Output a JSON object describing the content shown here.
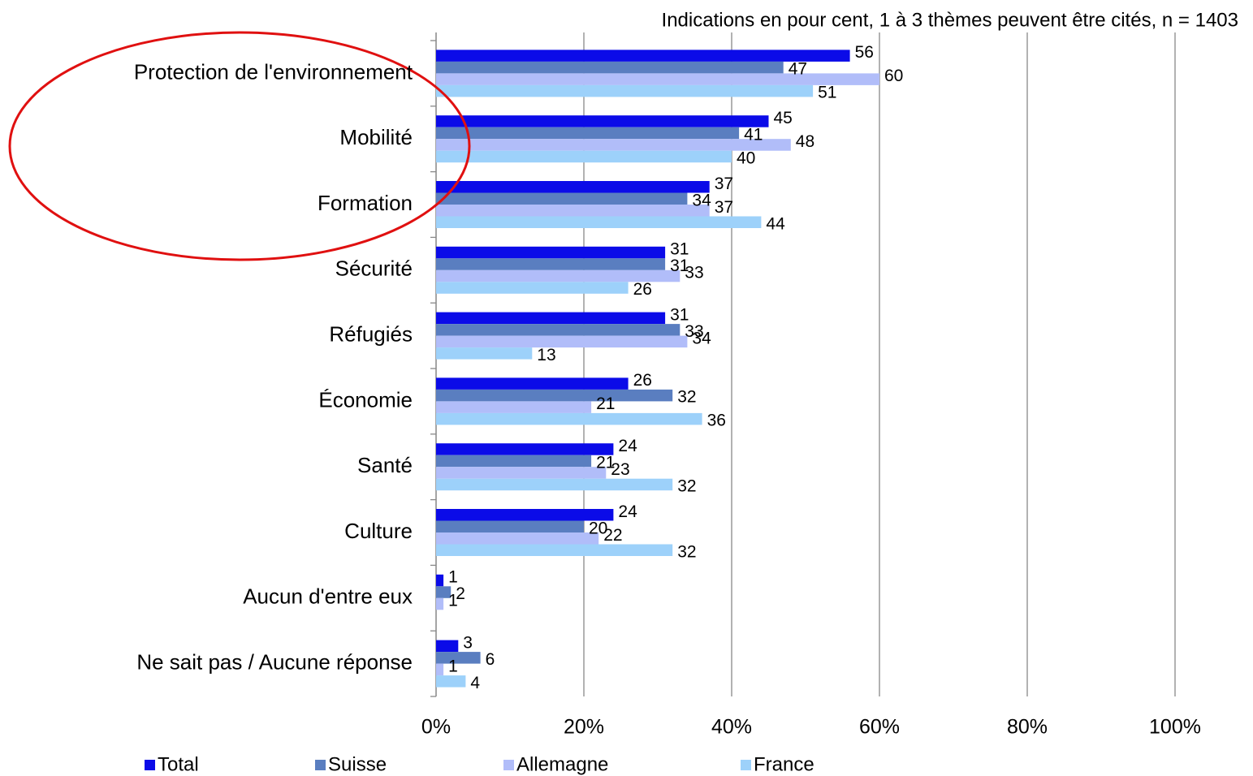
{
  "chart_data": {
    "type": "hbar",
    "title": "Indications en pour cent, 1 à 3 thèmes peuvent être cités, n = 1403",
    "categories": [
      "Protection de l'environnement",
      "Mobilité",
      "Formation",
      "Sécurité",
      "Réfugiés",
      "Économie",
      "Santé",
      "Culture",
      "Aucun d'entre eux",
      "Ne sait pas / Aucune réponse"
    ],
    "series": [
      {
        "name": "Total",
        "color": "#0b0be8",
        "values": [
          56,
          45,
          37,
          31,
          31,
          26,
          24,
          24,
          1,
          3
        ]
      },
      {
        "name": "Suisse",
        "color": "#5a7ec0",
        "values": [
          47,
          41,
          34,
          31,
          33,
          32,
          21,
          20,
          2,
          6
        ]
      },
      {
        "name": "Allemagne",
        "color": "#b1bdf9",
        "values": [
          60,
          48,
          37,
          33,
          34,
          21,
          23,
          22,
          1,
          1
        ]
      },
      {
        "name": "France",
        "color": "#9dd1fa",
        "values": [
          51,
          40,
          44,
          26,
          13,
          36,
          32,
          32,
          null,
          4
        ]
      }
    ],
    "xlim": [
      0,
      100
    ],
    "xticks": [
      {
        "value": 0,
        "label": "0%"
      },
      {
        "value": 20,
        "label": "20%"
      },
      {
        "value": 40,
        "label": "40%"
      },
      {
        "value": 60,
        "label": "60%"
      },
      {
        "value": 80,
        "label": "80%"
      },
      {
        "value": 100,
        "label": "100%"
      }
    ],
    "grid": true,
    "legend": "bottom"
  }
}
